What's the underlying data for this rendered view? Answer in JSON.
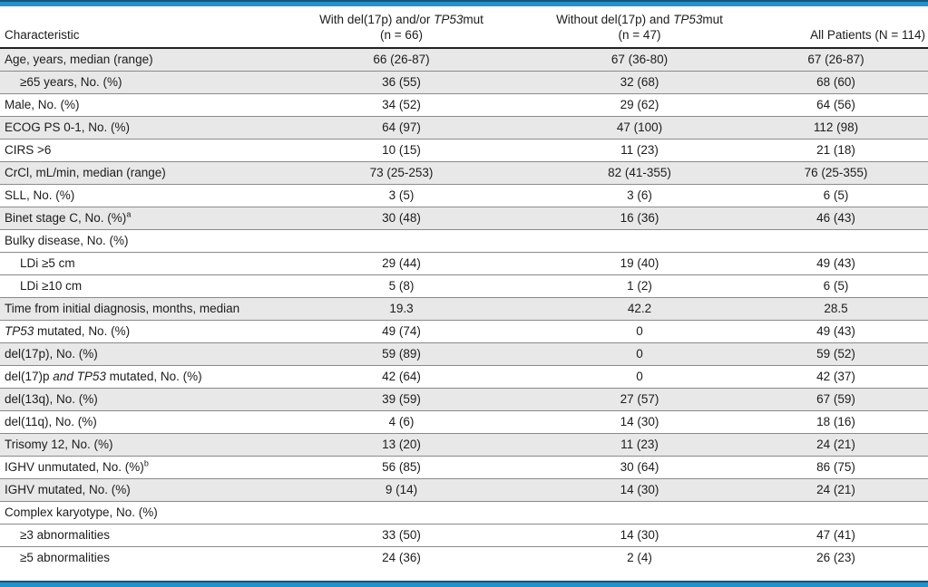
{
  "colors": {
    "accent_blue": "#2591cb",
    "accent_blue_dark": "#14567c",
    "stripe_gray": "#e8e8e8",
    "row_border": "#8a8a8a"
  },
  "table": {
    "columns": [
      {
        "label": "Characteristic"
      },
      {
        "line1": [
          {
            "t": "With del(17p) and/or "
          },
          {
            "t": "TP53",
            "i": true
          },
          {
            "t": "mut"
          }
        ],
        "line2": "(n = 66)"
      },
      {
        "line1": [
          {
            "t": "Without del(17p) and "
          },
          {
            "t": "TP53",
            "i": true
          },
          {
            "t": "mut"
          }
        ],
        "line2": "(n = 47)"
      },
      {
        "label": "All Patients (N = 114)"
      }
    ],
    "rows": [
      {
        "label": [
          {
            "t": "Age, years, median (range)"
          }
        ],
        "indent": false,
        "shaded": true,
        "values": [
          "66 (26-87)",
          "67 (36-80)",
          "67 (26-87)"
        ]
      },
      {
        "label": [
          {
            "t": "≥65 years, No. (%)"
          }
        ],
        "indent": true,
        "shaded": true,
        "values": [
          "36 (55)",
          "32 (68)",
          "68 (60)"
        ]
      },
      {
        "label": [
          {
            "t": "Male, No. (%)"
          }
        ],
        "indent": false,
        "shaded": false,
        "values": [
          "34 (52)",
          "29 (62)",
          "64 (56)"
        ]
      },
      {
        "label": [
          {
            "t": "ECOG PS 0-1, No. (%)"
          }
        ],
        "indent": false,
        "shaded": true,
        "values": [
          "64 (97)",
          "47 (100)",
          "112 (98)"
        ]
      },
      {
        "label": [
          {
            "t": "CIRS >6"
          }
        ],
        "indent": false,
        "shaded": false,
        "values": [
          "10 (15)",
          "11 (23)",
          "21 (18)"
        ]
      },
      {
        "label": [
          {
            "t": "CrCl, mL/min, median (range)"
          }
        ],
        "indent": false,
        "shaded": true,
        "values": [
          "73 (25-253)",
          "82 (41-355)",
          "76 (25-355)"
        ]
      },
      {
        "label": [
          {
            "t": "SLL, No. (%)"
          }
        ],
        "indent": false,
        "shaded": false,
        "values": [
          "3 (5)",
          "3 (6)",
          "6 (5)"
        ]
      },
      {
        "label": [
          {
            "t": "Binet stage C, No. (%)"
          },
          {
            "t": "a",
            "sup": true
          }
        ],
        "indent": false,
        "shaded": true,
        "values": [
          "30 (48)",
          "16 (36)",
          "46 (43)"
        ]
      },
      {
        "label": [
          {
            "t": "Bulky disease, No. (%)"
          }
        ],
        "indent": false,
        "shaded": false,
        "values": [
          "",
          "",
          ""
        ]
      },
      {
        "label": [
          {
            "t": "LDi ≥5 cm"
          }
        ],
        "indent": true,
        "shaded": false,
        "values": [
          "29 (44)",
          "19 (40)",
          "49 (43)"
        ]
      },
      {
        "label": [
          {
            "t": "LDi ≥10 cm"
          }
        ],
        "indent": true,
        "shaded": false,
        "values": [
          "5 (8)",
          "1 (2)",
          "6 (5)"
        ]
      },
      {
        "label": [
          {
            "t": "Time from initial diagnosis, months, median"
          }
        ],
        "indent": false,
        "shaded": true,
        "values": [
          "19.3",
          "42.2",
          "28.5"
        ]
      },
      {
        "label": [
          {
            "t": "TP53",
            "i": true
          },
          {
            "t": " mutated, No. (%)"
          }
        ],
        "indent": false,
        "shaded": false,
        "values": [
          "49 (74)",
          "0",
          "49 (43)"
        ]
      },
      {
        "label": [
          {
            "t": "del(17p), No. (%)"
          }
        ],
        "indent": false,
        "shaded": true,
        "values": [
          "59 (89)",
          "0",
          "59 (52)"
        ]
      },
      {
        "label": [
          {
            "t": "del(17)p "
          },
          {
            "t": "and TP53",
            "i": true
          },
          {
            "t": " mutated, No. (%)"
          }
        ],
        "indent": false,
        "shaded": false,
        "values": [
          "42 (64)",
          "0",
          "42 (37)"
        ]
      },
      {
        "label": [
          {
            "t": "del(13q), No. (%)"
          }
        ],
        "indent": false,
        "shaded": true,
        "values": [
          "39 (59)",
          "27 (57)",
          "67 (59)"
        ]
      },
      {
        "label": [
          {
            "t": "del(11q), No. (%)"
          }
        ],
        "indent": false,
        "shaded": false,
        "values": [
          "4 (6)",
          "14 (30)",
          "18 (16)"
        ]
      },
      {
        "label": [
          {
            "t": "Trisomy 12, No. (%)"
          }
        ],
        "indent": false,
        "shaded": true,
        "values": [
          "13 (20)",
          "11 (23)",
          "24 (21)"
        ]
      },
      {
        "label": [
          {
            "t": "IGHV unmutated, No. (%)"
          },
          {
            "t": "b",
            "sup": true
          }
        ],
        "indent": false,
        "shaded": false,
        "values": [
          "56 (85)",
          "30 (64)",
          "86 (75)"
        ]
      },
      {
        "label": [
          {
            "t": "IGHV mutated, No. (%)"
          }
        ],
        "indent": false,
        "shaded": true,
        "values": [
          "9 (14)",
          "14 (30)",
          "24 (21)"
        ]
      },
      {
        "label": [
          {
            "t": "Complex karyotype, No. (%)"
          }
        ],
        "indent": false,
        "shaded": false,
        "values": [
          "",
          "",
          ""
        ]
      },
      {
        "label": [
          {
            "t": "≥3 abnormalities"
          }
        ],
        "indent": true,
        "shaded": false,
        "values": [
          "33 (50)",
          "14 (30)",
          "47 (41)"
        ]
      },
      {
        "label": [
          {
            "t": "≥5 abnormalities"
          }
        ],
        "indent": true,
        "shaded": false,
        "values": [
          "24 (36)",
          "2 (4)",
          "26 (23)"
        ]
      }
    ]
  }
}
